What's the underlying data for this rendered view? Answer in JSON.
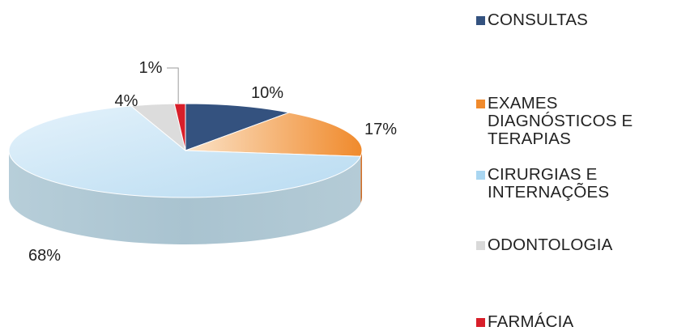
{
  "chart_data": {
    "type": "pie",
    "title": "",
    "categories": [
      "CONSULTAS",
      "EXAMES DIAGNÓSTICOS E TERAPIAS",
      "CIRURGIAS E INTERNAÇÕES",
      "ODONTOLOGIA",
      "FARMÁCIA"
    ],
    "values": [
      10,
      17,
      68,
      4,
      1
    ],
    "labels": [
      "10%",
      "17%",
      "68%",
      "4%",
      "1%"
    ],
    "colors": [
      "#34527f",
      "#f08a2c",
      "#cde6f6",
      "#d9d9d9",
      "#d81f2a"
    ],
    "legend": "right"
  },
  "legend": {
    "items": [
      {
        "lines": "CONSULTAS",
        "color": "#34527f"
      },
      {
        "lines": "EXAMES\nDIAGNÓSTICOS E\nTERAPIAS",
        "color": "#f08a2c"
      },
      {
        "lines": "CIRURGIAS E\nINTERNAÇÕES",
        "color": "#a9d6f1"
      },
      {
        "lines": "ODONTOLOGIA",
        "color": "#d9d9d9"
      },
      {
        "lines": "FARMÁCIA",
        "color": "#d81f2a"
      }
    ]
  }
}
